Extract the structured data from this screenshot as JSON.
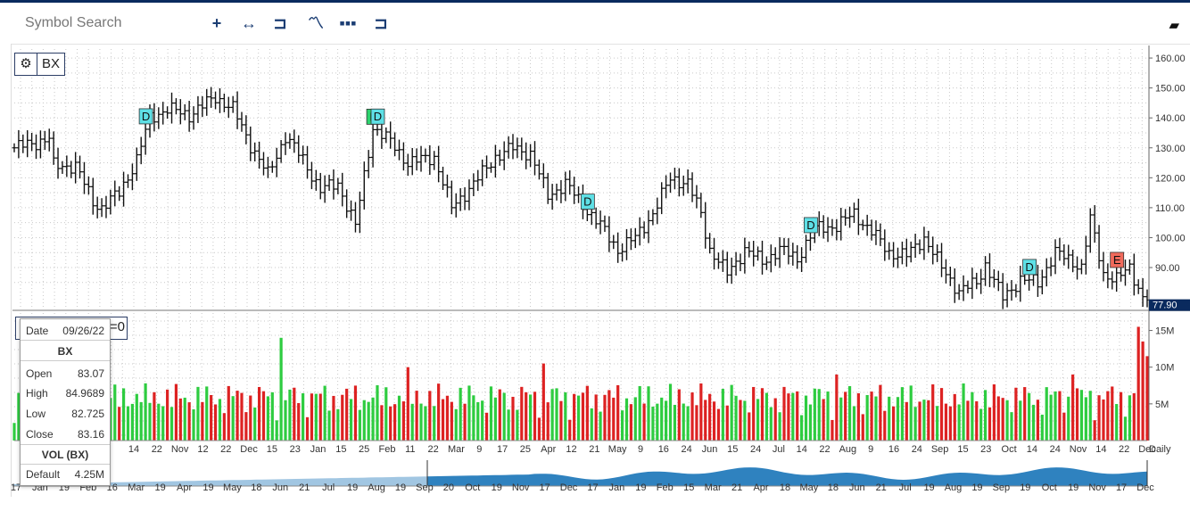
{
  "toolbar": {
    "search_placeholder": "Symbol Search",
    "icons": [
      "crosshair-icon",
      "measure-icon",
      "draw-icon",
      "studies-icon",
      "chart-style-icon",
      "compare-icon",
      "eraser-icon"
    ]
  },
  "chart": {
    "symbol": "BX",
    "last_price_label": "77.90",
    "period_label": "Daily",
    "vol_box_suffix": "=0"
  },
  "tooltip": {
    "date_label": "Date",
    "date_value": "09/26/22",
    "symbol": "BX",
    "open_label": "Open",
    "open_value": "83.07",
    "high_label": "High",
    "high_value": "84.9689",
    "low_label": "Low",
    "low_value": "82.725",
    "close_label": "Close",
    "close_value": "83.16",
    "vol_title": "VOL (BX)",
    "default_label": "Default",
    "default_value": "4.25M"
  },
  "colors": {
    "up": "#2ecc40",
    "down": "#dd2222",
    "bar": "#111111",
    "dividend": "#5ee0e6",
    "earnings": "#2bd36d",
    "accent": "#0a2a5e",
    "nav_fill": "#1874b8"
  },
  "chart_data": {
    "type": "bar",
    "title": "BX",
    "y_axis_labels": [
      "160.00",
      "150.00",
      "140.00",
      "130.00",
      "120.00",
      "110.00",
      "100.00",
      "90.00"
    ],
    "ylim": [
      76,
      163
    ],
    "volume_axis_labels": [
      "15M",
      "10M",
      "5M"
    ],
    "x_tick_labels": [
      "14",
      "22",
      "Nov",
      "12",
      "22",
      "Dec",
      "15",
      "23",
      "Jan",
      "15",
      "25",
      "Feb",
      "11",
      "22",
      "Mar",
      "9",
      "17",
      "25",
      "Apr",
      "12",
      "21",
      "May",
      "9",
      "16",
      "24",
      "Jun",
      "15",
      "24",
      "Jul",
      "14",
      "22",
      "Aug",
      "9",
      "16",
      "24",
      "Sep",
      "15",
      "23",
      "Oct",
      "14",
      "24",
      "Nov",
      "14",
      "22",
      "Dec"
    ],
    "nav_labels": [
      "17",
      "Jan",
      "19",
      "Feb",
      "16",
      "Mar",
      "19",
      "Apr",
      "19",
      "May",
      "18",
      "Jun",
      "21",
      "Jul",
      "19",
      "Aug",
      "19",
      "Sep",
      "20",
      "Oct",
      "19",
      "Nov",
      "17",
      "Dec",
      "17",
      "Jan",
      "19",
      "Feb",
      "15",
      "Mar",
      "21",
      "Apr",
      "18",
      "May",
      "18",
      "Jun",
      "21",
      "Jul",
      "19",
      "Aug",
      "19",
      "Sep",
      "19",
      "Oct",
      "19",
      "Nov",
      "17",
      "Dec"
    ],
    "markers": [
      {
        "type": "D",
        "index": 30
      },
      {
        "type": "E",
        "index": 82
      },
      {
        "type": "D",
        "index": 83
      },
      {
        "type": "D",
        "index": 131
      },
      {
        "type": "D",
        "index": 182
      },
      {
        "type": "D",
        "index": 232
      },
      {
        "type": "E",
        "index": 252
      }
    ],
    "anchors": [
      {
        "i": 0,
        "c": 130
      },
      {
        "i": 8,
        "c": 133
      },
      {
        "i": 9,
        "c": 124
      },
      {
        "i": 14,
        "c": 124
      },
      {
        "i": 18,
        "c": 112
      },
      {
        "i": 20,
        "c": 110
      },
      {
        "i": 24,
        "c": 115
      },
      {
        "i": 28,
        "c": 126
      },
      {
        "i": 31,
        "c": 140
      },
      {
        "i": 35,
        "c": 143
      },
      {
        "i": 40,
        "c": 141
      },
      {
        "i": 46,
        "c": 147
      },
      {
        "i": 50,
        "c": 143
      },
      {
        "i": 54,
        "c": 131
      },
      {
        "i": 58,
        "c": 121
      },
      {
        "i": 62,
        "c": 134
      },
      {
        "i": 66,
        "c": 126
      },
      {
        "i": 70,
        "c": 116
      },
      {
        "i": 74,
        "c": 118
      },
      {
        "i": 78,
        "c": 104
      },
      {
        "i": 82,
        "c": 137
      },
      {
        "i": 86,
        "c": 132
      },
      {
        "i": 90,
        "c": 125
      },
      {
        "i": 96,
        "c": 127
      },
      {
        "i": 100,
        "c": 110
      },
      {
        "i": 105,
        "c": 118
      },
      {
        "i": 110,
        "c": 127
      },
      {
        "i": 114,
        "c": 130
      },
      {
        "i": 118,
        "c": 128
      },
      {
        "i": 122,
        "c": 114
      },
      {
        "i": 126,
        "c": 118
      },
      {
        "i": 130,
        "c": 111
      },
      {
        "i": 134,
        "c": 104
      },
      {
        "i": 138,
        "c": 96
      },
      {
        "i": 142,
        "c": 100
      },
      {
        "i": 146,
        "c": 108
      },
      {
        "i": 150,
        "c": 120
      },
      {
        "i": 154,
        "c": 118
      },
      {
        "i": 157,
        "c": 108
      },
      {
        "i": 159,
        "c": 96
      },
      {
        "i": 163,
        "c": 88
      },
      {
        "i": 167,
        "c": 96
      },
      {
        "i": 171,
        "c": 92
      },
      {
        "i": 175,
        "c": 96
      },
      {
        "i": 179,
        "c": 93
      },
      {
        "i": 183,
        "c": 103
      },
      {
        "i": 188,
        "c": 104
      },
      {
        "i": 192,
        "c": 108
      },
      {
        "i": 196,
        "c": 102
      },
      {
        "i": 200,
        "c": 95
      },
      {
        "i": 204,
        "c": 94
      },
      {
        "i": 208,
        "c": 100
      },
      {
        "i": 212,
        "c": 90
      },
      {
        "i": 216,
        "c": 82
      },
      {
        "i": 220,
        "c": 85
      },
      {
        "i": 222,
        "c": 91
      },
      {
        "i": 226,
        "c": 80
      },
      {
        "i": 230,
        "c": 86
      },
      {
        "i": 234,
        "c": 85
      },
      {
        "i": 238,
        "c": 95
      },
      {
        "i": 242,
        "c": 92
      },
      {
        "i": 244,
        "c": 90
      },
      {
        "i": 246,
        "c": 106
      },
      {
        "i": 249,
        "c": 88
      },
      {
        "i": 252,
        "c": 86
      },
      {
        "i": 255,
        "c": 90
      },
      {
        "i": 258,
        "c": 80
      }
    ],
    "volume_spikes": [
      {
        "i": 61,
        "v": 14
      },
      {
        "i": 90,
        "v": 10
      },
      {
        "i": 121,
        "v": 10.5
      },
      {
        "i": 188,
        "v": 9
      },
      {
        "i": 242,
        "v": 9
      },
      {
        "i": 257,
        "v": 15.5
      },
      {
        "i": 258,
        "v": 13.5
      },
      {
        "i": 259,
        "v": 11.5
      }
    ],
    "ohlc_count": 260
  }
}
